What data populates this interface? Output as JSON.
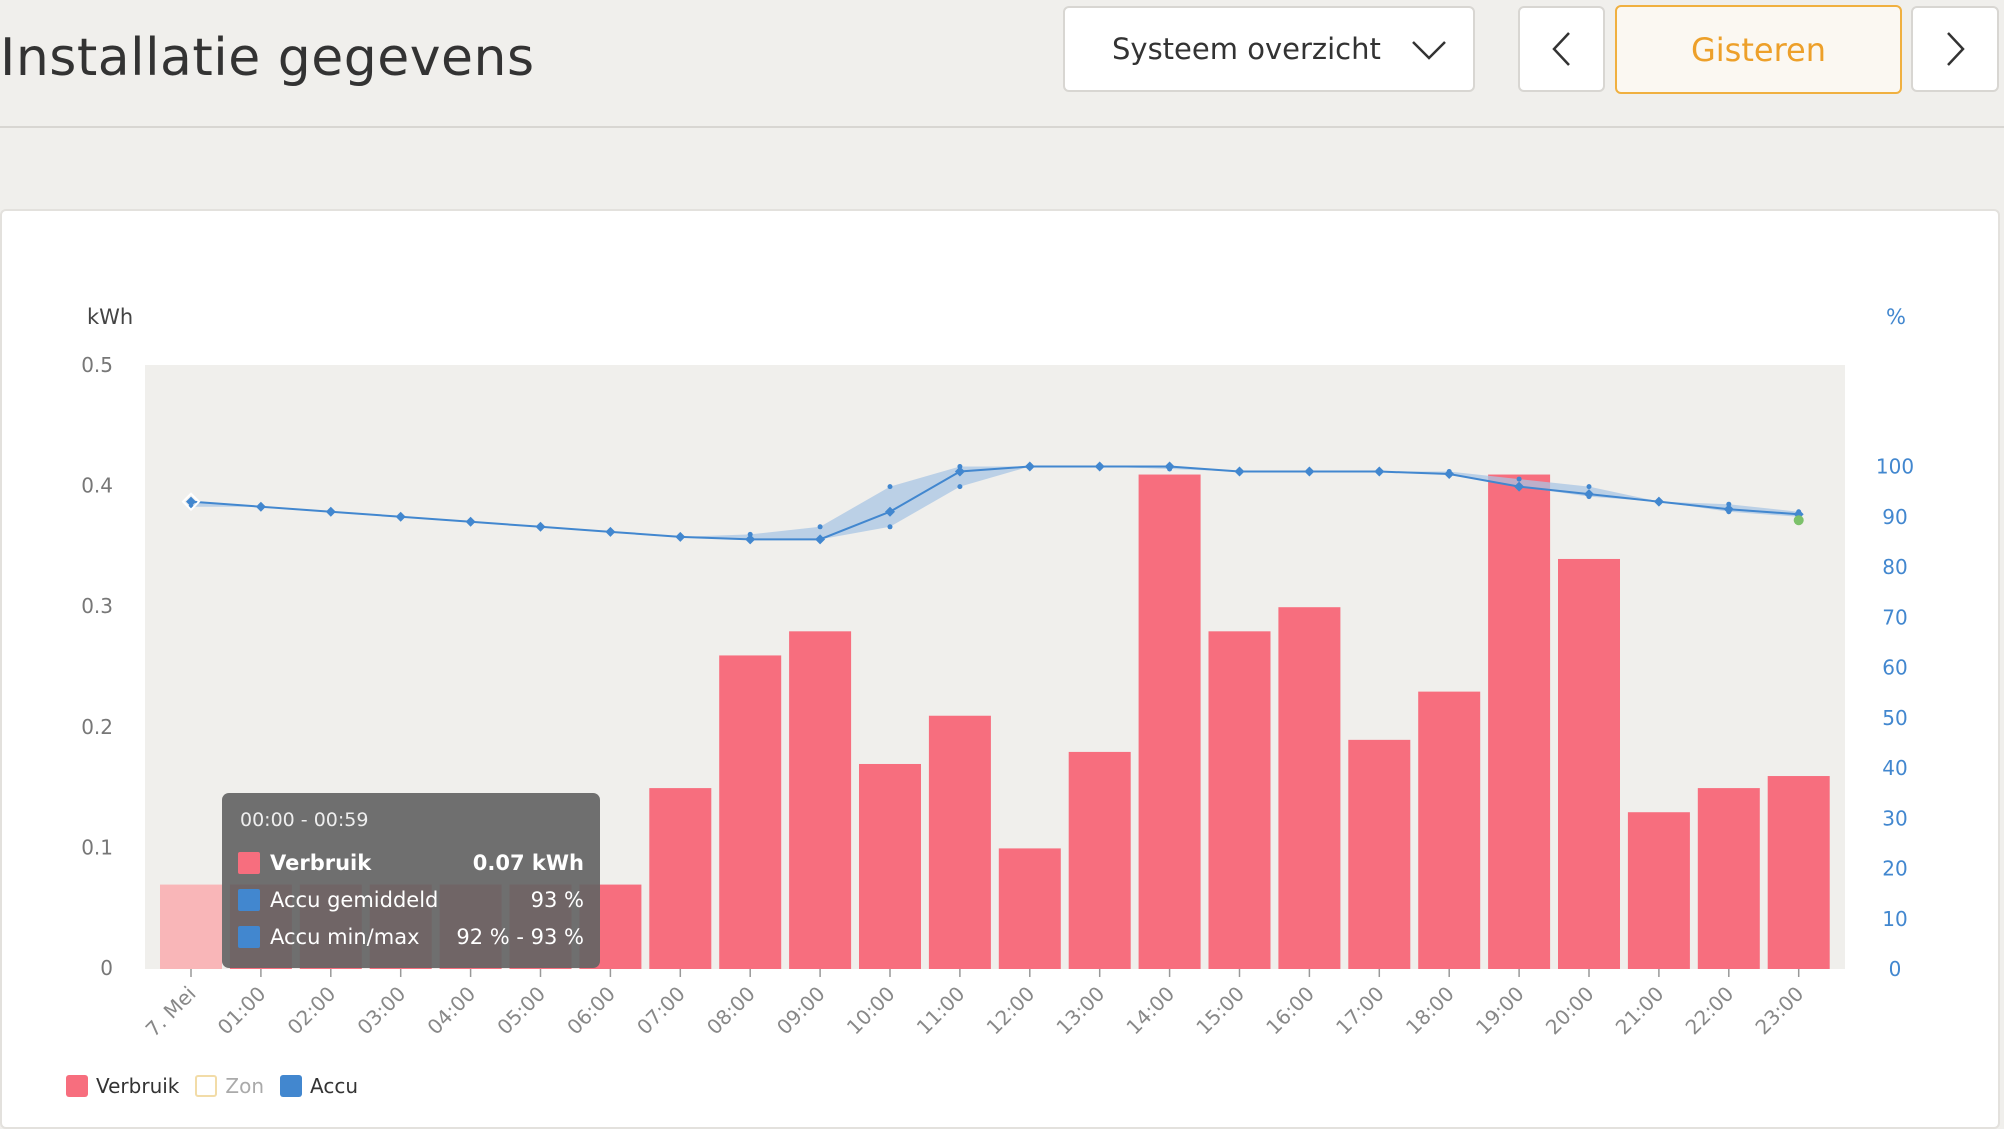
{
  "header": {
    "title": "Installatie gegevens",
    "view_select": "Systeem overzicht",
    "day_button": "Gisteren"
  },
  "colors": {
    "verbruik": "#f76e7e",
    "verbruik_hover": "#f9b6b8",
    "accu": "#4287cf",
    "accu_band": "#a9c6e4",
    "zon_border": "#f2dca8",
    "plot_bg": "#f0efec",
    "accent": "#eda02a"
  },
  "icons": {
    "dropdown": "chevron-down-icon",
    "prev": "chevron-left-icon",
    "next": "chevron-right-icon"
  },
  "legend": {
    "items": [
      {
        "label": "Verbruik"
      },
      {
        "label": "Zon"
      },
      {
        "label": "Accu"
      }
    ]
  },
  "tooltip": {
    "title": "00:00 - 00:59",
    "rows": [
      {
        "label": "Verbruik",
        "value": "0.07 kWh"
      },
      {
        "label": "Accu gemiddeld",
        "value": "93 %"
      },
      {
        "label": "Accu min/max",
        "value": "92 % - 93 %"
      }
    ]
  },
  "chart_data": {
    "type": "bar",
    "xlabel": "",
    "ylabel": "kWh",
    "y2label": "%",
    "ylim": [
      0,
      0.5
    ],
    "y2lim": [
      0,
      120
    ],
    "yticks": [
      "0",
      "0.1",
      "0.2",
      "0.3",
      "0.4",
      "0.5"
    ],
    "y2ticks": [
      "0",
      "10",
      "20",
      "30",
      "40",
      "50",
      "60",
      "70",
      "80",
      "90",
      "100"
    ],
    "categories": [
      "7. Mei",
      "01:00",
      "02:00",
      "03:00",
      "04:00",
      "05:00",
      "06:00",
      "07:00",
      "08:00",
      "09:00",
      "10:00",
      "11:00",
      "12:00",
      "13:00",
      "14:00",
      "15:00",
      "16:00",
      "17:00",
      "18:00",
      "19:00",
      "20:00",
      "21:00",
      "22:00",
      "23:00"
    ],
    "series": [
      {
        "name": "Verbruik",
        "axis": "left",
        "values": [
          0.07,
          0.07,
          0.07,
          0.07,
          0.07,
          0.07,
          0.07,
          0.15,
          0.26,
          0.28,
          0.17,
          0.21,
          0.1,
          0.18,
          0.41,
          0.28,
          0.3,
          0.19,
          0.23,
          0.41,
          0.34,
          0.13,
          0.15,
          0.16
        ]
      },
      {
        "name": "Accu",
        "axis": "right",
        "type": "line",
        "values": [
          93,
          92,
          91,
          90,
          89,
          88,
          87,
          86,
          85.5,
          85.5,
          91,
          99,
          100,
          100,
          100,
          99,
          99,
          99,
          98.5,
          96,
          94.5,
          93,
          91.5,
          90.5
        ],
        "min": [
          92,
          92,
          91,
          90,
          89,
          88,
          87,
          86,
          85.5,
          85.5,
          88,
          96,
          100,
          100,
          99.5,
          99,
          99,
          99,
          98.5,
          96,
          94,
          93,
          91,
          90
        ],
        "max": [
          93,
          92,
          91,
          90,
          89,
          88,
          87,
          86,
          86.5,
          88,
          96,
          100,
          100,
          100,
          100,
          99,
          99,
          99,
          99,
          97.5,
          96,
          93,
          92.5,
          91
        ]
      }
    ],
    "legend_position": "bottom-left",
    "grid": false,
    "highlighted_category": "7. Mei"
  }
}
